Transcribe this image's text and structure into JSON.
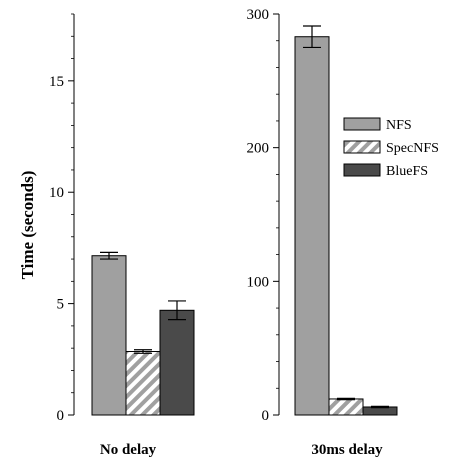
{
  "chart_data": [
    {
      "type": "bar",
      "category": "No delay",
      "ylabel": "Time (seconds)",
      "ylim": [
        0,
        18
      ],
      "yticks": [
        0,
        5,
        10,
        15
      ],
      "series": [
        {
          "name": "NFS",
          "value": 7.15,
          "error": 0.15
        },
        {
          "name": "SpecNFS",
          "value": 2.85,
          "error": 0.08
        },
        {
          "name": "BlueFS",
          "value": 4.7,
          "error": 0.42
        }
      ]
    },
    {
      "type": "bar",
      "category": "30ms delay",
      "ylabel": "",
      "ylim": [
        0,
        300
      ],
      "yticks": [
        0,
        100,
        200,
        300
      ],
      "series": [
        {
          "name": "NFS",
          "value": 283,
          "error": 8
        },
        {
          "name": "SpecNFS",
          "value": 12,
          "error": 0.5
        },
        {
          "name": "BlueFS",
          "value": 6,
          "error": 0.5
        }
      ]
    }
  ],
  "legend": {
    "position": "right-middle",
    "entries": [
      {
        "name": "NFS",
        "style": "solid-light",
        "color": "#a0a0a0"
      },
      {
        "name": "SpecNFS",
        "style": "hatched",
        "color": "#ffffff"
      },
      {
        "name": "BlueFS",
        "style": "solid-dark",
        "color": "#4a4a4a"
      }
    ]
  },
  "colors": {
    "nfs": "#a0a0a0",
    "bluefs": "#4a4a4a",
    "hatch": "#a0a0a0",
    "axis": "#000000"
  }
}
